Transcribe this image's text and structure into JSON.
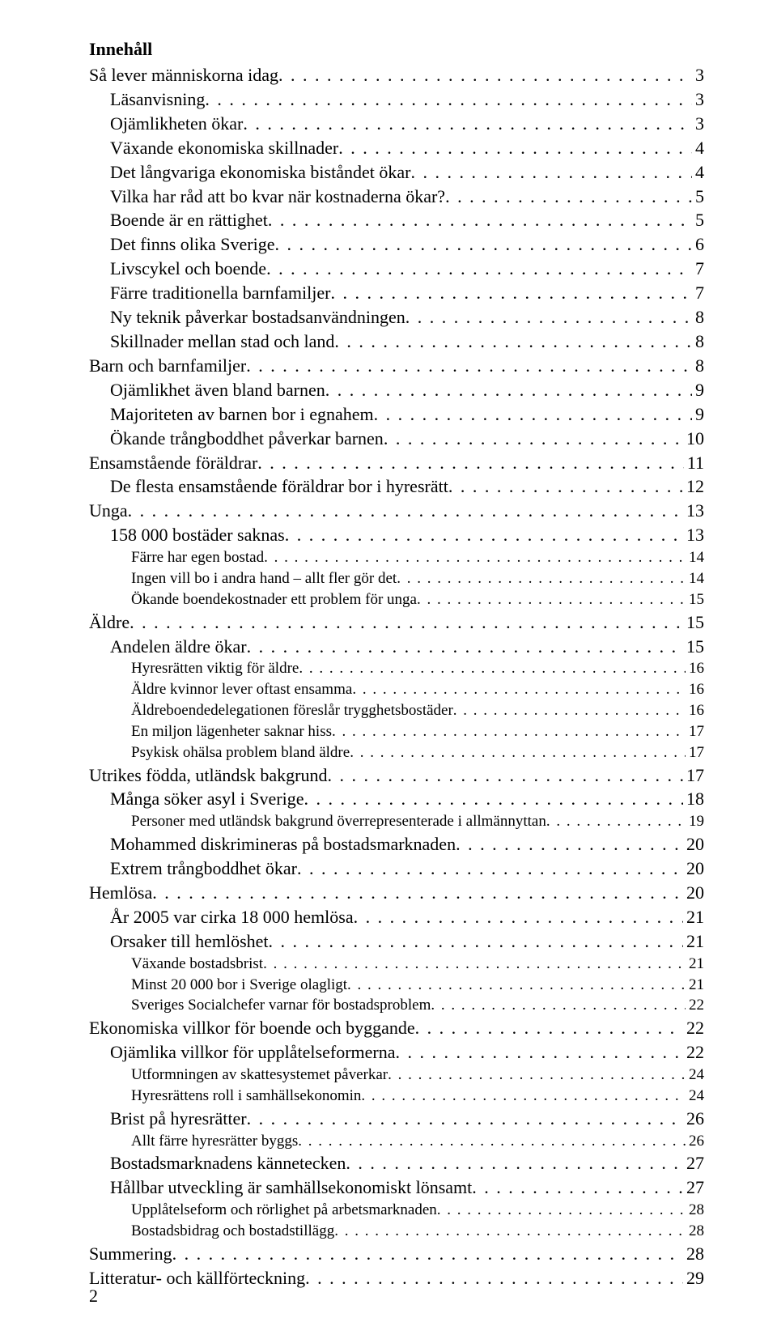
{
  "title": "Innehåll",
  "footer_page_number": "2",
  "colors": {
    "text": "#000000",
    "background": "#ffffff"
  },
  "typography": {
    "family": "Times New Roman",
    "title_size_pt": 16,
    "lvl0_size_pt": 16,
    "lvl1_size_pt": 16,
    "lvl2_size_pt": 14
  },
  "toc": [
    {
      "level": 0,
      "text": "Så lever människorna idag",
      "page": "3"
    },
    {
      "level": 1,
      "text": "Läsanvisning",
      "page": "3"
    },
    {
      "level": 1,
      "text": "Ojämlikheten ökar",
      "page": "3"
    },
    {
      "level": 1,
      "text": "Växande ekonomiska skillnader",
      "page": "4"
    },
    {
      "level": 1,
      "text": "Det långvariga ekonomiska biståndet ökar",
      "page": "4"
    },
    {
      "level": 1,
      "text": "Vilka har råd att bo kvar när kostnaderna ökar?",
      "page": "5"
    },
    {
      "level": 1,
      "text": "Boende är en rättighet",
      "page": "5"
    },
    {
      "level": 1,
      "text": "Det finns olika Sverige",
      "page": "6"
    },
    {
      "level": 1,
      "text": "Livscykel och boende",
      "page": "7"
    },
    {
      "level": 1,
      "text": "Färre traditionella barnfamiljer",
      "page": "7"
    },
    {
      "level": 1,
      "text": "Ny teknik påverkar bostadsanvändningen",
      "page": "8"
    },
    {
      "level": 1,
      "text": "Skillnader mellan stad och land",
      "page": "8"
    },
    {
      "level": 0,
      "text": "Barn och barnfamiljer",
      "page": "8"
    },
    {
      "level": 1,
      "text": "Ojämlikhet även bland barnen",
      "page": "9"
    },
    {
      "level": 1,
      "text": "Majoriteten av barnen bor i egnahem",
      "page": "9"
    },
    {
      "level": 1,
      "text": "Ökande trångboddhet påverkar barnen",
      "page": "10"
    },
    {
      "level": 0,
      "text": "Ensamstående föräldrar",
      "page": "11"
    },
    {
      "level": 1,
      "text": "De flesta ensamstående föräldrar bor i hyresrätt",
      "page": "12"
    },
    {
      "level": 0,
      "text": "Unga",
      "page": "13"
    },
    {
      "level": 1,
      "text": "158 000 bostäder saknas",
      "page": "13"
    },
    {
      "level": 2,
      "text": "Färre har egen bostad",
      "page": "14"
    },
    {
      "level": 2,
      "text": "Ingen vill bo i andra hand – allt fler gör det",
      "page": "14"
    },
    {
      "level": 2,
      "text": "Ökande boendekostnader ett problem för unga",
      "page": "15"
    },
    {
      "level": 0,
      "text": "Äldre",
      "page": "15"
    },
    {
      "level": 1,
      "text": "Andelen äldre ökar",
      "page": "15"
    },
    {
      "level": 2,
      "text": "Hyresrätten viktig för äldre",
      "page": "16"
    },
    {
      "level": 2,
      "text": "Äldre kvinnor lever oftast ensamma",
      "page": "16"
    },
    {
      "level": 2,
      "text": "Äldreboendedelegationen föreslår trygghetsbostäder",
      "page": "16"
    },
    {
      "level": 2,
      "text": "En miljon lägenheter saknar hiss",
      "page": "17"
    },
    {
      "level": 2,
      "text": "Psykisk ohälsa problem bland äldre",
      "page": "17"
    },
    {
      "level": 0,
      "text": "Utrikes födda, utländsk bakgrund",
      "page": "17"
    },
    {
      "level": 1,
      "text": "Många söker asyl i Sverige",
      "page": "18"
    },
    {
      "level": 2,
      "text": "Personer med utländsk bakgrund överrepresenterade i allmännyttan",
      "page": "19"
    },
    {
      "level": 1,
      "text": "Mohammed diskrimineras på bostadsmarknaden",
      "page": "20"
    },
    {
      "level": 1,
      "text": "Extrem trångboddhet ökar",
      "page": "20"
    },
    {
      "level": 0,
      "text": "Hemlösa",
      "page": "20"
    },
    {
      "level": 1,
      "text": "År 2005 var cirka 18 000 hemlösa",
      "page": "21"
    },
    {
      "level": 1,
      "text": "Orsaker till hemlöshet",
      "page": "21"
    },
    {
      "level": 2,
      "text": "Växande bostadsbrist",
      "page": "21"
    },
    {
      "level": 2,
      "text": "Minst 20 000 bor i Sverige olagligt",
      "page": "21"
    },
    {
      "level": 2,
      "text": "Sveriges Socialchefer varnar för bostadsproblem",
      "page": "22"
    },
    {
      "level": 0,
      "text": "Ekonomiska villkor för boende och byggande",
      "page": "22"
    },
    {
      "level": 1,
      "text": "Ojämlika villkor för upplåtelseformerna",
      "page": "22"
    },
    {
      "level": 2,
      "text": "Utformningen av skattesystemet påverkar",
      "page": "24"
    },
    {
      "level": 2,
      "text": "Hyresrättens roll i samhällsekonomin",
      "page": "24"
    },
    {
      "level": 1,
      "text": "Brist på hyresrätter",
      "page": "26"
    },
    {
      "level": 2,
      "text": "Allt färre hyresrätter byggs",
      "page": "26"
    },
    {
      "level": 1,
      "text": "Bostadsmarknadens kännetecken",
      "page": "27"
    },
    {
      "level": 1,
      "text": "Hållbar utveckling är samhällsekonomiskt lönsamt",
      "page": "27"
    },
    {
      "level": 2,
      "text": "Upplåtelseform och rörlighet på arbetsmarknaden",
      "page": "28"
    },
    {
      "level": 2,
      "text": "Bostadsbidrag och bostadstillägg",
      "page": "28"
    },
    {
      "level": 0,
      "text": "Summering",
      "page": "28"
    },
    {
      "level": 0,
      "text": "Litteratur- och källförteckning",
      "page": "29"
    }
  ]
}
